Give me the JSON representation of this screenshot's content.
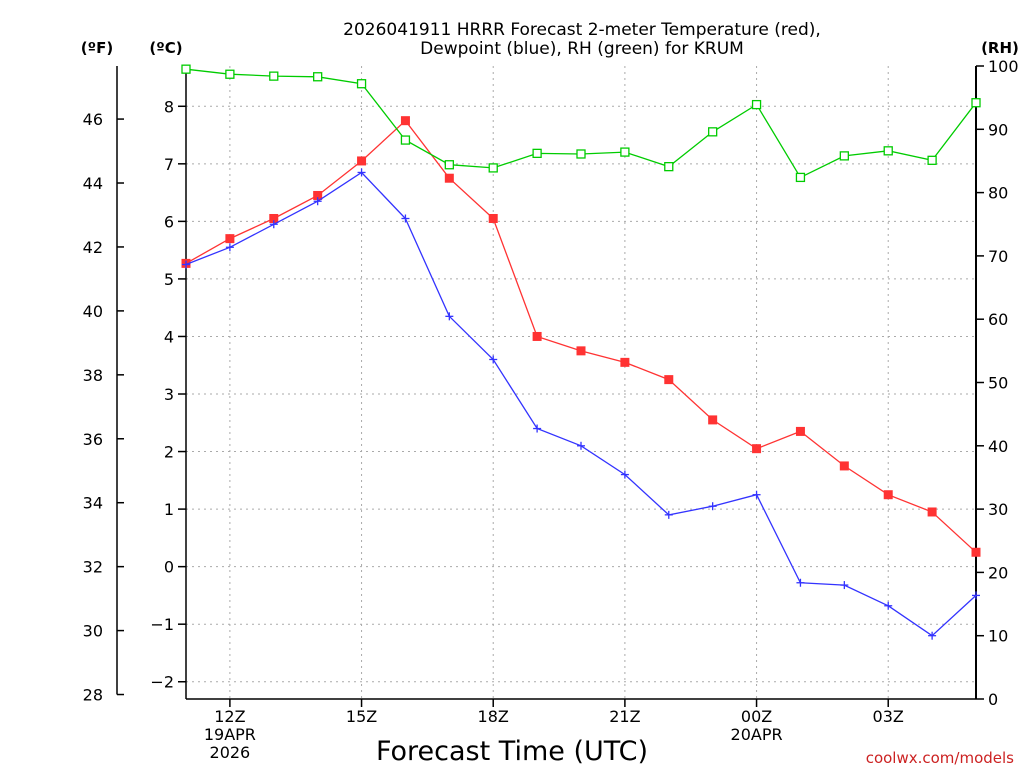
{
  "chart_data": {
    "type": "line",
    "title_line1": "2026041911 HRRR Forecast 2-meter Temperature (red),",
    "title_line2": "Dewpoint (blue), RH (green) for KRUM",
    "units_f": "(ºF)",
    "units_c": "(ºC)",
    "units_rh": "(RH)",
    "xlabel": "Forecast Time (UTC)",
    "watermark": "coolwx.com/models",
    "x_hours": [
      11,
      12,
      13,
      14,
      15,
      16,
      17,
      18,
      19,
      20,
      21,
      22,
      23,
      24,
      25,
      26,
      27,
      28,
      29
    ],
    "x_ticks": [
      {
        "hour": 12,
        "label": "12Z"
      },
      {
        "hour": 15,
        "label": "15Z"
      },
      {
        "hour": 18,
        "label": "18Z"
      },
      {
        "hour": 21,
        "label": "21Z"
      },
      {
        "hour": 24,
        "label": "00Z"
      },
      {
        "hour": 27,
        "label": "03Z"
      }
    ],
    "x_date_labels": [
      {
        "hour": 12,
        "line1": "19APR",
        "line2": "2026"
      },
      {
        "hour": 24,
        "line1": "20APR",
        "line2": ""
      }
    ],
    "xlim": [
      11,
      29
    ],
    "celsius_axis": {
      "ylim": [
        -2.3,
        8.7
      ],
      "ticks": [
        -2,
        -1,
        0,
        1,
        2,
        3,
        4,
        5,
        6,
        7,
        8
      ],
      "tick_labels": [
        "−2",
        "−1",
        "0",
        "1",
        "2",
        "3",
        "4",
        "5",
        "6",
        "7",
        "8"
      ]
    },
    "fahrenheit_axis": {
      "ticks": [
        28,
        30,
        32,
        34,
        36,
        38,
        40,
        42,
        44,
        46
      ],
      "tick_labels": [
        "28",
        "30",
        "32",
        "34",
        "36",
        "38",
        "40",
        "42",
        "44",
        "46"
      ]
    },
    "rh_axis": {
      "ylim": [
        0,
        100
      ],
      "ticks": [
        0,
        10,
        20,
        30,
        40,
        50,
        60,
        70,
        80,
        90,
        100
      ],
      "tick_labels": [
        "0",
        "10",
        "20",
        "30",
        "40",
        "50",
        "60",
        "70",
        "80",
        "90",
        "100"
      ]
    },
    "series": [
      {
        "name": "Temperature",
        "axis": "celsius",
        "color": "#ff3333",
        "marker": "filled-square",
        "values": [
          5.27,
          5.7,
          6.05,
          6.45,
          7.05,
          7.75,
          6.75,
          6.05,
          4.0,
          3.75,
          3.55,
          3.25,
          2.55,
          2.05,
          2.35,
          1.75,
          1.25,
          0.95,
          0.25
        ]
      },
      {
        "name": "Dewpoint",
        "axis": "celsius",
        "color": "#3333ff",
        "marker": "plus",
        "values": [
          5.25,
          5.55,
          5.95,
          6.35,
          6.85,
          6.05,
          4.35,
          3.6,
          2.4,
          2.1,
          1.6,
          0.9,
          1.05,
          1.25,
          -0.28,
          -0.32,
          -0.68,
          -1.2,
          -0.5
        ]
      },
      {
        "name": "RH",
        "axis": "rh",
        "color": "#00cc00",
        "marker": "open-square",
        "values": [
          99.5,
          98.7,
          98.4,
          98.3,
          97.2,
          88.3,
          84.4,
          83.9,
          86.2,
          86.1,
          86.4,
          84.1,
          89.6,
          93.9,
          82.4,
          85.8,
          86.6,
          85.1,
          94.2
        ]
      }
    ]
  }
}
